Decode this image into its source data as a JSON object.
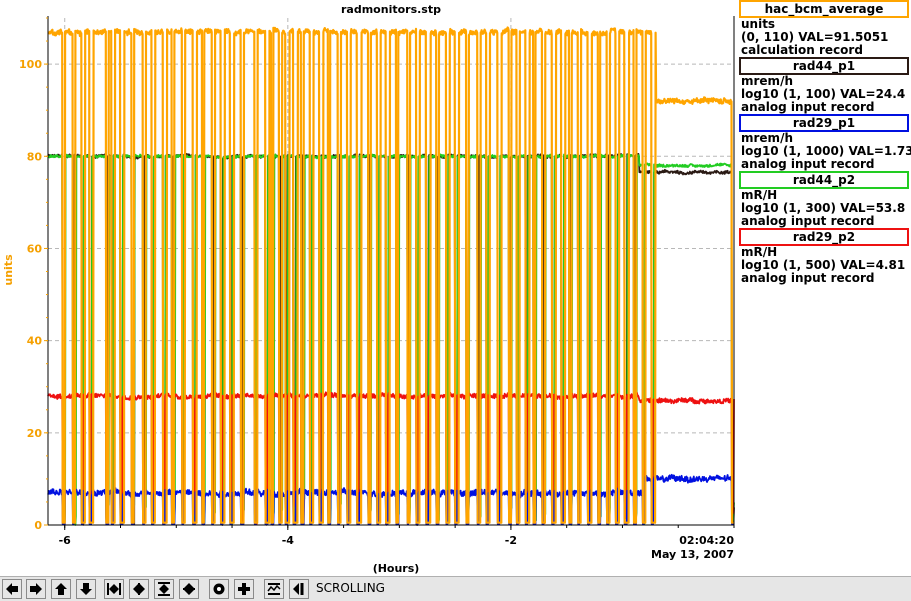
{
  "chart_data": {
    "type": "line",
    "title": "radmonitors.stp",
    "ylabel": "units",
    "xlabel": "(Hours)",
    "ylim": [
      0,
      110
    ],
    "y_ticks": [
      0,
      20,
      40,
      60,
      80,
      100
    ],
    "xlim": [
      -6.15,
      0
    ],
    "x_ticks": [
      -6,
      -4,
      -2
    ],
    "x_tick_labels": [
      "-6",
      "-4",
      "-2"
    ],
    "end_time": "02:04:20",
    "end_date": "May 13, 2007",
    "grid": true,
    "axis_color": "#f5a000",
    "series": [
      {
        "name": "hac_bcm_average",
        "color": "#ffa500",
        "base": 107,
        "late_base": 92,
        "late_from": -0.7,
        "noise": 1.0
      },
      {
        "name": "rad44_p1",
        "color": "#2a1a14",
        "base": 80,
        "late_base": 76.5,
        "late_from": -0.85,
        "noise": 0.6
      },
      {
        "name": "rad29_p1",
        "color": "#0010e0",
        "base": 7,
        "late_base": 10,
        "late_from": -0.8,
        "noise": 1.2
      },
      {
        "name": "rad44_p2",
        "color": "#22cc22",
        "base": 80,
        "late_base": 78,
        "late_from": -0.85,
        "noise": 0.5
      },
      {
        "name": "rad29_p2",
        "color": "#ee1111",
        "base": 28,
        "late_base": 27,
        "late_from": -0.85,
        "noise": 0.9
      }
    ],
    "trips": [
      -6.02,
      -5.93,
      -5.85,
      -5.78,
      -5.63,
      -5.58,
      -5.5,
      -5.4,
      -5.3,
      -5.22,
      -5.12,
      -5.04,
      -4.95,
      -4.85,
      -4.77,
      -4.68,
      -4.6,
      -4.52,
      -4.42,
      -4.3,
      -4.2,
      -4.15,
      -4.08,
      -4.02,
      -3.95,
      -3.88,
      -3.8,
      -3.72,
      -3.64,
      -3.55,
      -3.47,
      -3.38,
      -3.28,
      -3.2,
      -3.12,
      -3.03,
      -2.93,
      -2.85,
      -2.76,
      -2.67,
      -2.58,
      -2.5,
      -2.4,
      -2.3,
      -2.22,
      -2.12,
      -2.02,
      -1.95,
      -1.87,
      -1.8,
      -1.72,
      -1.63,
      -1.55,
      -1.48,
      -1.4,
      -1.31,
      -1.22,
      -1.14,
      -1.06,
      -0.98,
      -0.9,
      -0.82,
      -0.74,
      -0.02
    ]
  },
  "legend": [
    {
      "name": "hac_bcm_average",
      "color": "#ffa500",
      "units": "units",
      "range": "(0, 110) VAL=91.5051",
      "record": "calculation record"
    },
    {
      "name": "rad44_p1",
      "color": "#2a1a14",
      "units": "mrem/h",
      "range": "log10 (1, 100) VAL=24.4",
      "record": "analog input record"
    },
    {
      "name": "rad29_p1",
      "color": "#0010e0",
      "units": "mrem/h",
      "range": "log10 (1, 1000) VAL=1.73",
      "record": "analog input record"
    },
    {
      "name": "rad44_p2",
      "color": "#22cc22",
      "units": "mR/H",
      "range": "log10 (1, 300) VAL=53.8",
      "record": "analog input record"
    },
    {
      "name": "rad29_p2",
      "color": "#ee1111",
      "units": "mR/H",
      "range": "log10 (1, 500) VAL=4.81",
      "record": "analog input record"
    }
  ],
  "toolbar": {
    "buttons": [
      "arrow-left-icon",
      "arrow-right-icon",
      "arrow-up-icon",
      "arrow-down-icon",
      "shrink-horizontal-icon",
      "expand-horizontal-icon",
      "shrink-vertical-icon",
      "expand-vertical-icon",
      "record-icon",
      "add-icon",
      "autoscale-icon",
      "go-back-icon"
    ],
    "status": "SCROLLING"
  }
}
